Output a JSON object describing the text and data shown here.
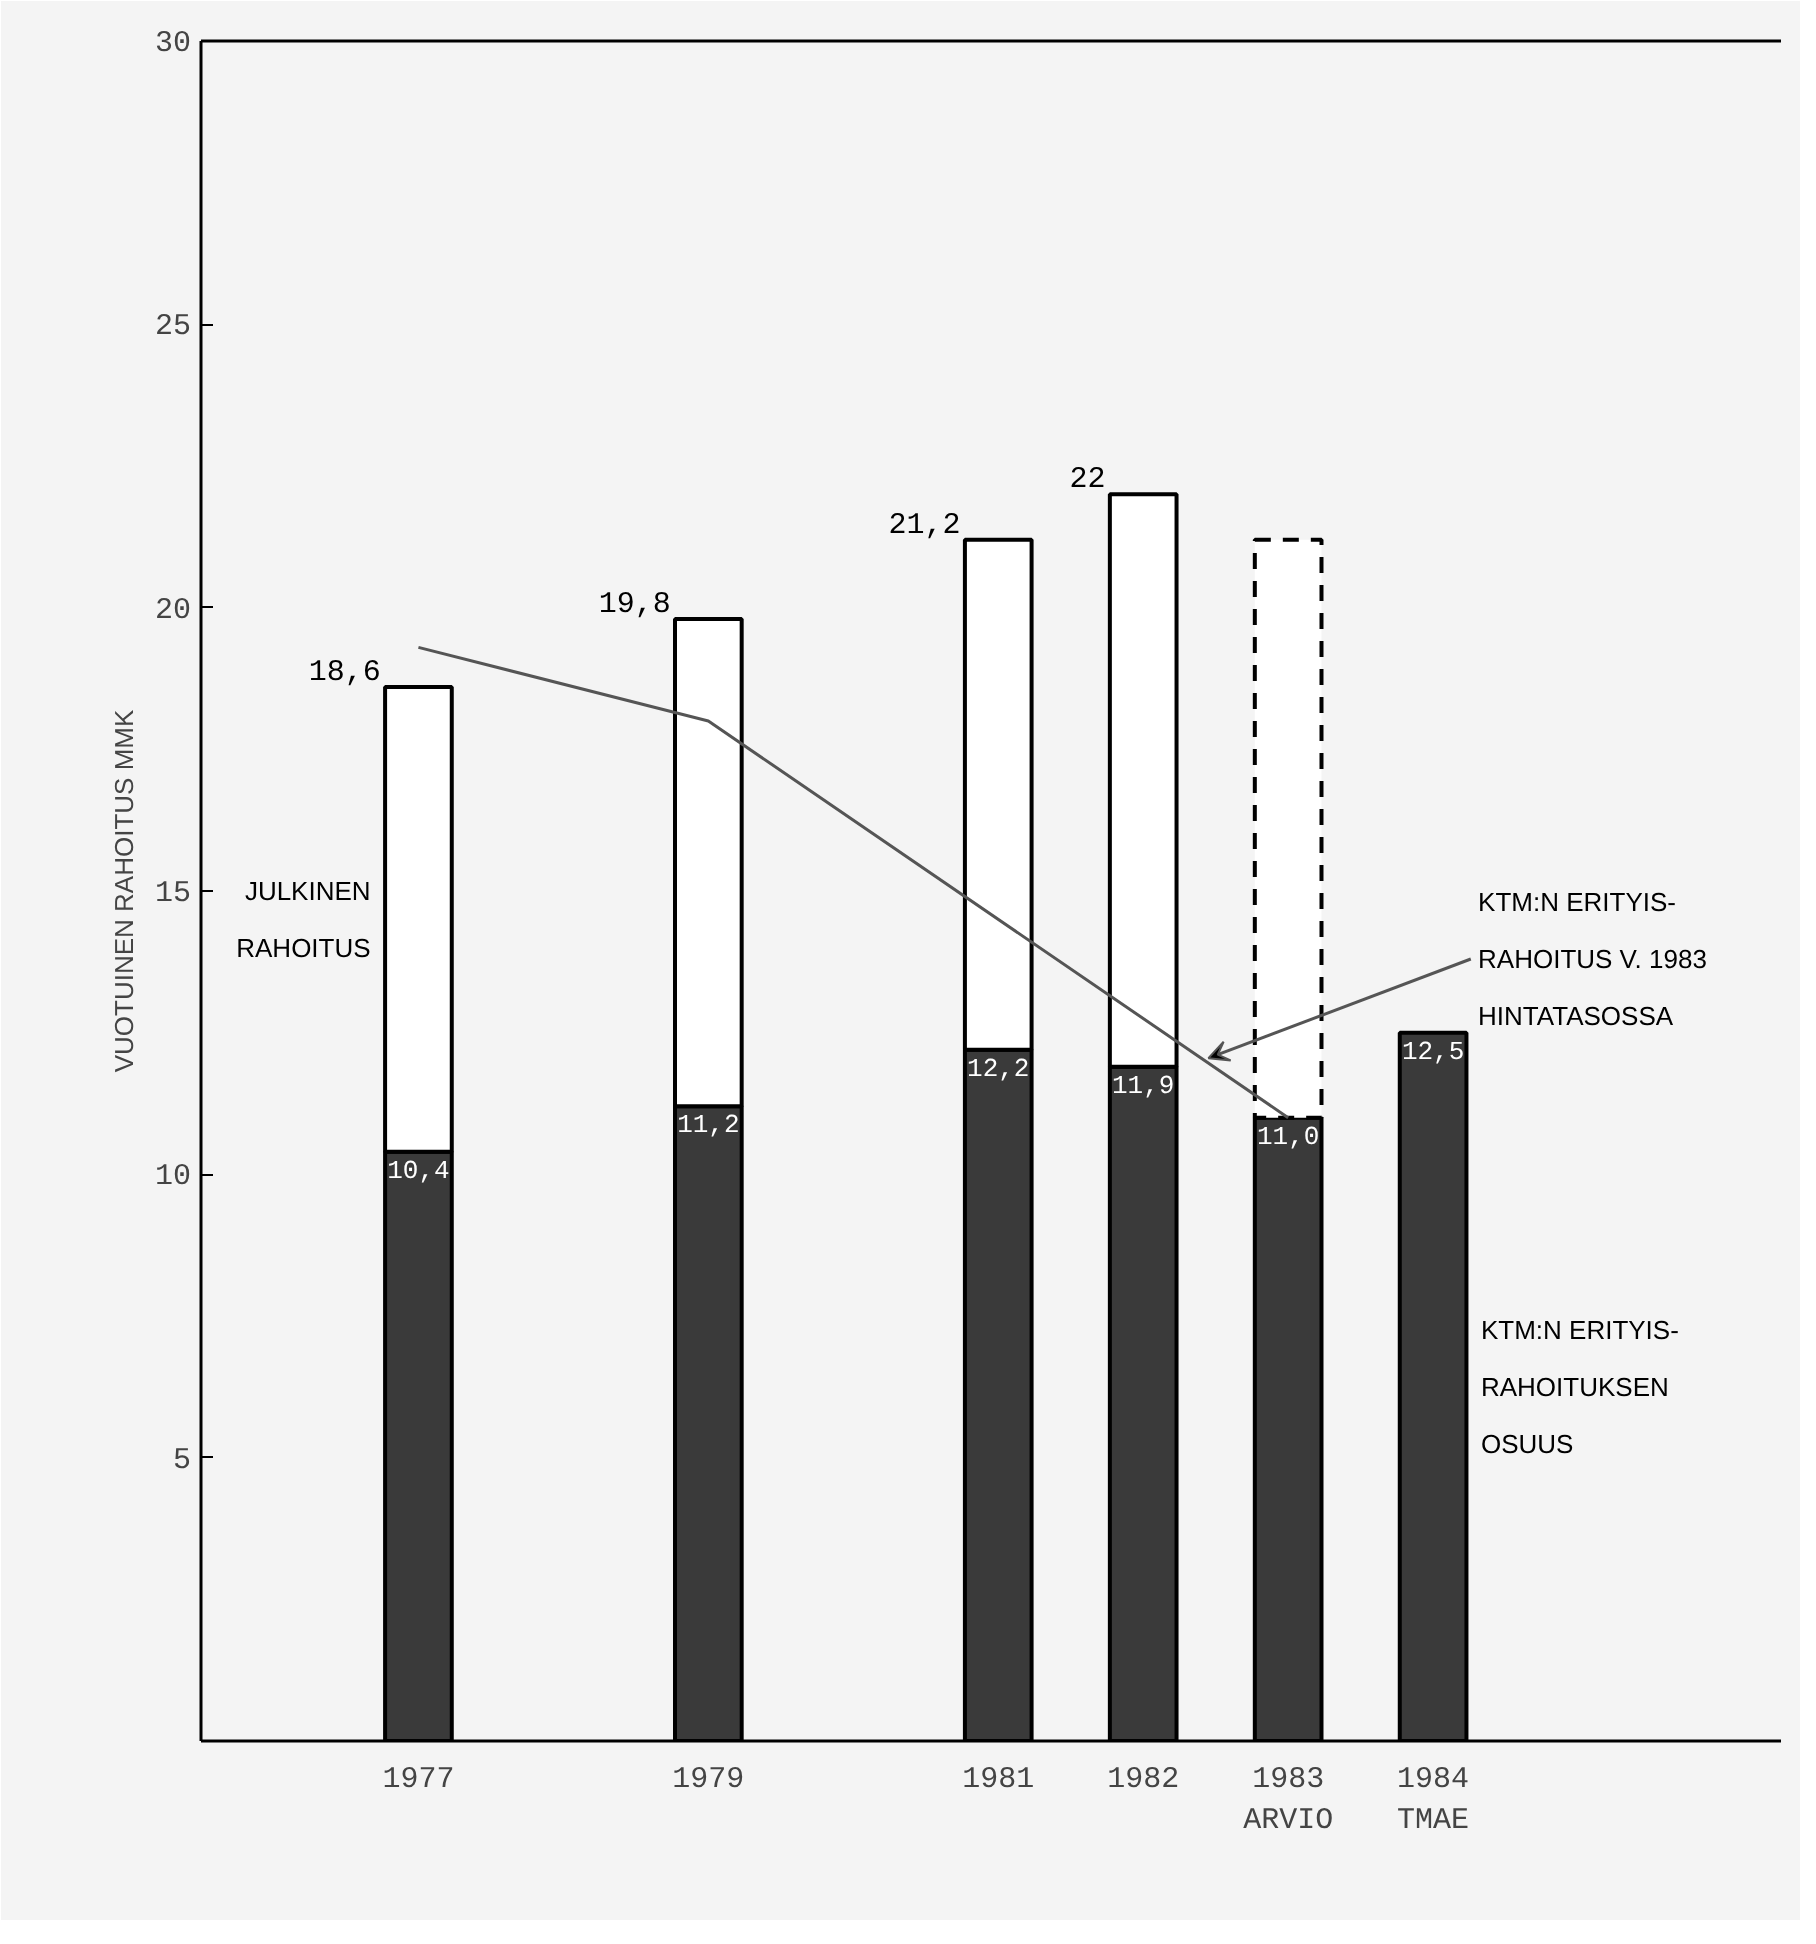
{
  "chart_data": {
    "type": "bar",
    "stacked": true,
    "ylabel": "VUOTUINEN RAHOITUS MMK",
    "x": [
      1977,
      1979,
      1981,
      1982,
      1983,
      1984
    ],
    "xlim": [
      1975.5,
      1986.4
    ],
    "xticks": [
      1977,
      1979,
      1981,
      1982,
      {
        "value": 1983,
        "label": "1983\nARVIO"
      },
      {
        "value": 1984,
        "label": "1984\nTMAE"
      }
    ],
    "ylim": [
      0,
      30
    ],
    "yticks": [
      5,
      10,
      15,
      20,
      25,
      30
    ],
    "series": [
      {
        "name": "KTM:N ERITYIS-\nRAHOITUKSEN\nOSUUS",
        "color": "#3a3a3a",
        "values": [
          10.4,
          11.2,
          12.2,
          11.9,
          11.0,
          12.5
        ],
        "value_labels": [
          "10,4",
          "11,2",
          "12,2",
          "11,9",
          "11,0",
          "12,5"
        ]
      },
      {
        "name": "JULKINEN\nRAHOITUS",
        "color": "#ffffff",
        "values": [
          8.2,
          8.6,
          9.0,
          10.1,
          null,
          null
        ],
        "line_style": "solid"
      },
      {
        "color": "#ffffff",
        "values": [
          null,
          null,
          null,
          null,
          10.2,
          null
        ],
        "line_style": "dashed"
      },
      {
        "type": "line",
        "name": "KTM:N ERITYIS-\nRAHOITUS V. 1983\nHINTATASOSSA",
        "color": "#555555",
        "x": [
          1977,
          1979,
          1983
        ],
        "values": [
          19.3,
          18.0,
          11.0
        ]
      }
    ],
    "totals": [
      "18,6",
      "19,8",
      "21,2",
      "22",
      null,
      null
    ],
    "grid": false,
    "legend": false,
    "marker": "none"
  }
}
